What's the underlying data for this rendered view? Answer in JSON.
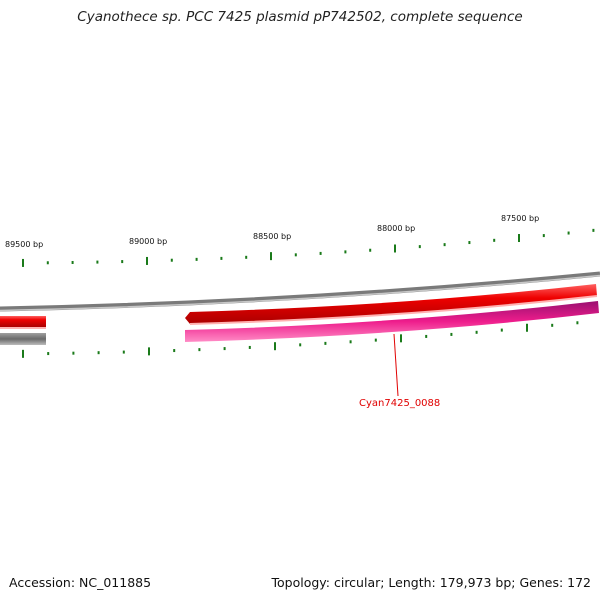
{
  "title": "Cyanothece sp. PCC 7425 plasmid pP742502, complete sequence",
  "accession": "Accession: NC_011885",
  "summary": "Topology: circular; Length: 179,973 bp; Genes: 172",
  "scale_labels": [
    "89500 bp",
    "89000 bp",
    "88500 bp",
    "88000 bp",
    "87500 bp"
  ],
  "gene_label": "Cyan7425_0088",
  "colors": {
    "backbone": "#888888",
    "forward_gene": "#ee0000",
    "reverse_gene": "#ee1d8c",
    "other_gene": "#777777",
    "tick": "#1a7a1a",
    "label": "#e00000"
  }
}
